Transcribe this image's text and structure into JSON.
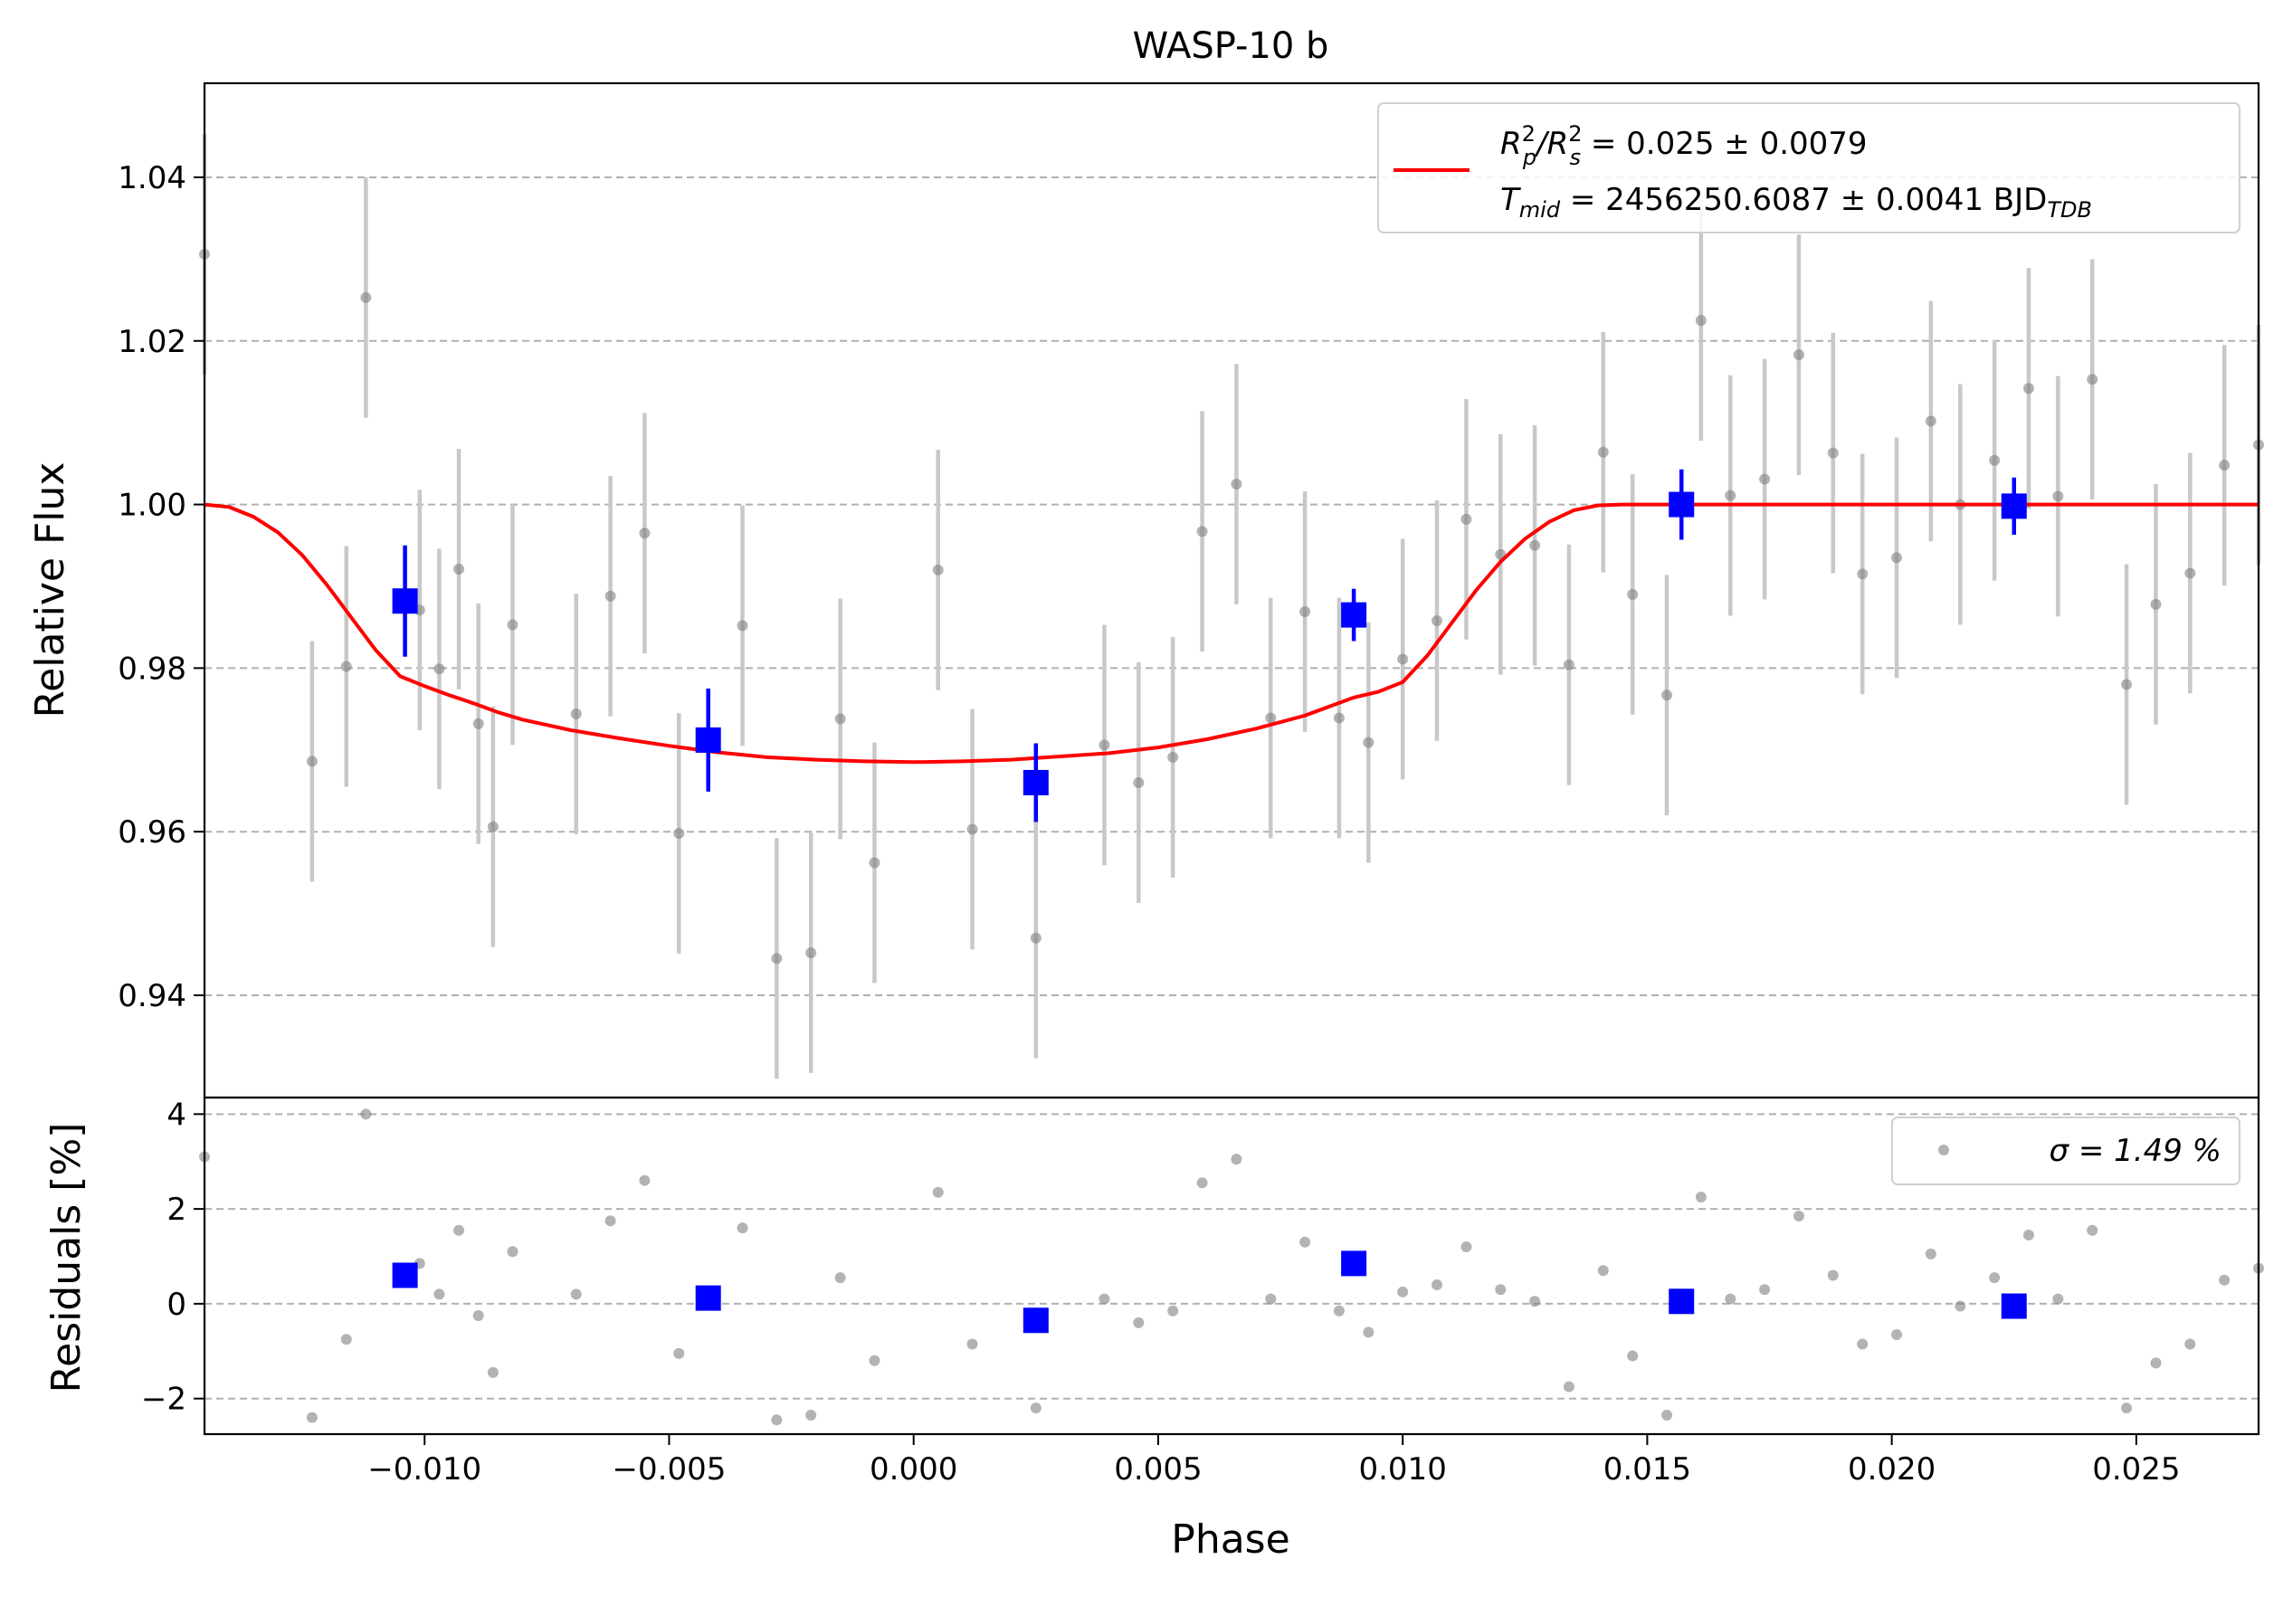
{
  "chart_data": {
    "type": "scatter",
    "title": "WASP-10 b",
    "xlabel": "Phase",
    "xlim": [
      -0.0145,
      0.0275
    ],
    "xticks": [
      "−0.010",
      "−0.005",
      "0.000",
      "0.005",
      "0.010",
      "0.015",
      "0.020",
      "0.025"
    ],
    "xtick_values": [
      -0.01,
      -0.005,
      0.0,
      0.005,
      0.01,
      0.015,
      0.02,
      0.025
    ],
    "grid": "dashed horizontal",
    "colors": {
      "data": "#808080",
      "errorbar": "#c8c8c8",
      "binned": "#0000ff",
      "model": "#ff0000"
    },
    "top_panel": {
      "ylabel": "Relative Flux",
      "ylim": [
        0.9275,
        1.0515
      ],
      "yticks": [
        "0.94",
        "0.96",
        "0.98",
        "1.00",
        "1.02",
        "1.04"
      ],
      "ytick_values": [
        0.94,
        0.96,
        0.98,
        1.0,
        1.02,
        1.04
      ],
      "legend": {
        "placement": "top-right",
        "line1_main": "R",
        "line1_sub": "p",
        "line1_sup": "2",
        "line1_slash": "/R",
        "line1_sub2": "s",
        "line1_sup2": "2",
        "line1_value": " = 0.025 ± 0.0079",
        "line2_main": "T",
        "line2_sub": "mid",
        "line2_value": " = 2456250.6087 ± 0.0041 BJD",
        "line2_unit_sub": "TDB"
      },
      "series": [
        {
          "kind": "data",
          "x": [
            -0.0145,
            -0.0123,
            -0.0116,
            -0.0112,
            -0.0101,
            -0.0097,
            -0.0093,
            -0.0089,
            -0.0086,
            -0.0082,
            -0.0069,
            -0.0062,
            -0.0055,
            -0.0048,
            -0.0035,
            -0.0028,
            -0.0021,
            -0.0015,
            -0.0008,
            0.0005,
            0.0012,
            0.0025,
            0.0039,
            0.0046,
            0.0053,
            0.0059,
            0.0066,
            0.0073,
            0.008,
            0.0087,
            0.0093,
            0.01,
            0.0107,
            0.0113,
            0.012,
            0.0127,
            0.0134,
            0.0141,
            0.0147,
            0.0154,
            0.0161,
            0.0167,
            0.0174,
            0.0181,
            0.0188,
            0.0194,
            0.0201,
            0.0208,
            0.0214,
            0.0221,
            0.0228,
            0.0234,
            0.0241,
            0.0248,
            0.0254,
            0.0261,
            0.0268,
            0.0275
          ],
          "y": [
            1.0306,
            0.9686,
            0.9802,
            1.0253,
            0.9871,
            0.9799,
            0.9921,
            0.9732,
            0.9606,
            0.9853,
            0.9744,
            0.9888,
            0.9965,
            0.9598,
            0.9852,
            0.9445,
            0.9452,
            0.9738,
            0.9562,
            0.992,
            0.9603,
            0.947,
            0.9706,
            0.966,
            0.9691,
            0.9967,
            1.0025,
            0.9739,
            0.9869,
            0.9739,
            0.9709,
            0.9811,
            0.9858,
            0.9982,
            0.9939,
            0.995,
            0.9804,
            1.0064,
            0.989,
            0.9767,
            1.0225,
            1.0011,
            1.0031,
            1.0183,
            1.0063,
            0.9915,
            0.9935,
            1.0102,
            1.0,
            1.0054,
            1.0142,
            1.001,
            1.0153,
            0.978,
            0.9878,
            0.9916,
            1.0048,
            1.0073
          ],
          "yerr": 0.0147
        },
        {
          "kind": "binned",
          "x": [
            -0.0104,
            -0.0042,
            0.0025,
            0.009,
            0.0157,
            0.0225
          ],
          "y": [
            0.9882,
            0.9712,
            0.966,
            0.9865,
            1.0,
            0.9998
          ],
          "yerr": [
            0.0068,
            0.0063,
            0.0048,
            0.0032,
            0.0043,
            0.0035
          ]
        },
        {
          "kind": "model",
          "name": "R_p^2/R_s^2 = 0.025 ± 0.0079",
          "x": [
            -0.0145,
            -0.014,
            -0.0135,
            -0.013,
            -0.0125,
            -0.012,
            -0.0115,
            -0.011,
            -0.0105,
            -0.01,
            -0.0095,
            -0.009,
            -0.0085,
            -0.008,
            -0.007,
            -0.006,
            -0.005,
            -0.004,
            -0.003,
            -0.002,
            -0.001,
            0.0,
            0.001,
            0.002,
            0.003,
            0.004,
            0.005,
            0.006,
            0.007,
            0.008,
            0.009,
            0.0095,
            0.01,
            0.0105,
            0.011,
            0.0115,
            0.012,
            0.0125,
            0.013,
            0.0135,
            0.014,
            0.0145,
            0.0275
          ],
          "y": [
            1.0,
            0.9997,
            0.9985,
            0.9966,
            0.9938,
            0.9902,
            0.9862,
            0.9822,
            0.979,
            0.9778,
            0.9767,
            0.9757,
            0.9746,
            0.9737,
            0.9724,
            0.9714,
            0.9705,
            0.9697,
            0.9691,
            0.9688,
            0.9686,
            0.9685,
            0.9686,
            0.9688,
            0.9692,
            0.9696,
            0.9703,
            0.9713,
            0.9726,
            0.9742,
            0.9764,
            0.9771,
            0.9783,
            0.9815,
            0.9855,
            0.9895,
            0.993,
            0.9958,
            0.9979,
            0.9993,
            0.9999,
            1.0,
            1.0
          ]
        }
      ]
    },
    "bottom_panel": {
      "ylabel": "Residuals [%]",
      "ylim": [
        -2.75,
        4.35
      ],
      "yticks": [
        "−2",
        "0",
        "2",
        "4"
      ],
      "ytick_values": [
        -2,
        0,
        2,
        4
      ],
      "legend": {
        "placement": "top-right",
        "text": "σ = 1.49 %"
      },
      "series": [
        {
          "kind": "data",
          "x": [
            -0.0145,
            -0.0123,
            -0.0116,
            -0.0112,
            -0.0101,
            -0.0097,
            -0.0093,
            -0.0089,
            -0.0086,
            -0.0082,
            -0.0069,
            -0.0062,
            -0.0055,
            -0.0048,
            -0.0035,
            -0.0028,
            -0.0021,
            -0.0015,
            -0.0008,
            0.0005,
            0.0012,
            0.0025,
            0.0039,
            0.0046,
            0.0053,
            0.0059,
            0.0066,
            0.0073,
            0.008,
            0.0087,
            0.0093,
            0.01,
            0.0107,
            0.0113,
            0.012,
            0.0127,
            0.0134,
            0.0141,
            0.0147,
            0.0154,
            0.0161,
            0.0167,
            0.0174,
            0.0181,
            0.0188,
            0.0194,
            0.0201,
            0.0208,
            0.0214,
            0.0221,
            0.0228,
            0.0234,
            0.0241,
            0.0248,
            0.0254,
            0.0261,
            0.0268,
            0.0275
          ],
          "y": [
            3.1,
            -2.4,
            -0.75,
            4.0,
            0.85,
            0.2,
            1.55,
            -0.25,
            -1.45,
            1.1,
            0.2,
            1.75,
            2.6,
            -1.05,
            1.6,
            -2.45,
            -2.35,
            0.55,
            -1.2,
            2.35,
            -0.85,
            -2.2,
            0.1,
            -0.4,
            -0.15,
            2.55,
            3.05,
            0.1,
            1.3,
            -0.15,
            -0.6,
            0.25,
            0.4,
            1.2,
            0.3,
            0.05,
            -1.75,
            0.7,
            -1.1,
            -2.35,
            2.25,
            0.1,
            0.3,
            1.85,
            0.6,
            -0.85,
            -0.65,
            1.05,
            -0.05,
            0.55,
            1.45,
            0.1,
            1.55,
            -2.2,
            -1.25,
            -0.85,
            0.5,
            0.75
          ]
        },
        {
          "kind": "binned",
          "x": [
            -0.0104,
            -0.0042,
            0.0025,
            0.009,
            0.0157,
            0.0225
          ],
          "y": [
            0.6,
            0.12,
            -0.35,
            0.85,
            0.05,
            -0.05
          ]
        }
      ]
    }
  }
}
